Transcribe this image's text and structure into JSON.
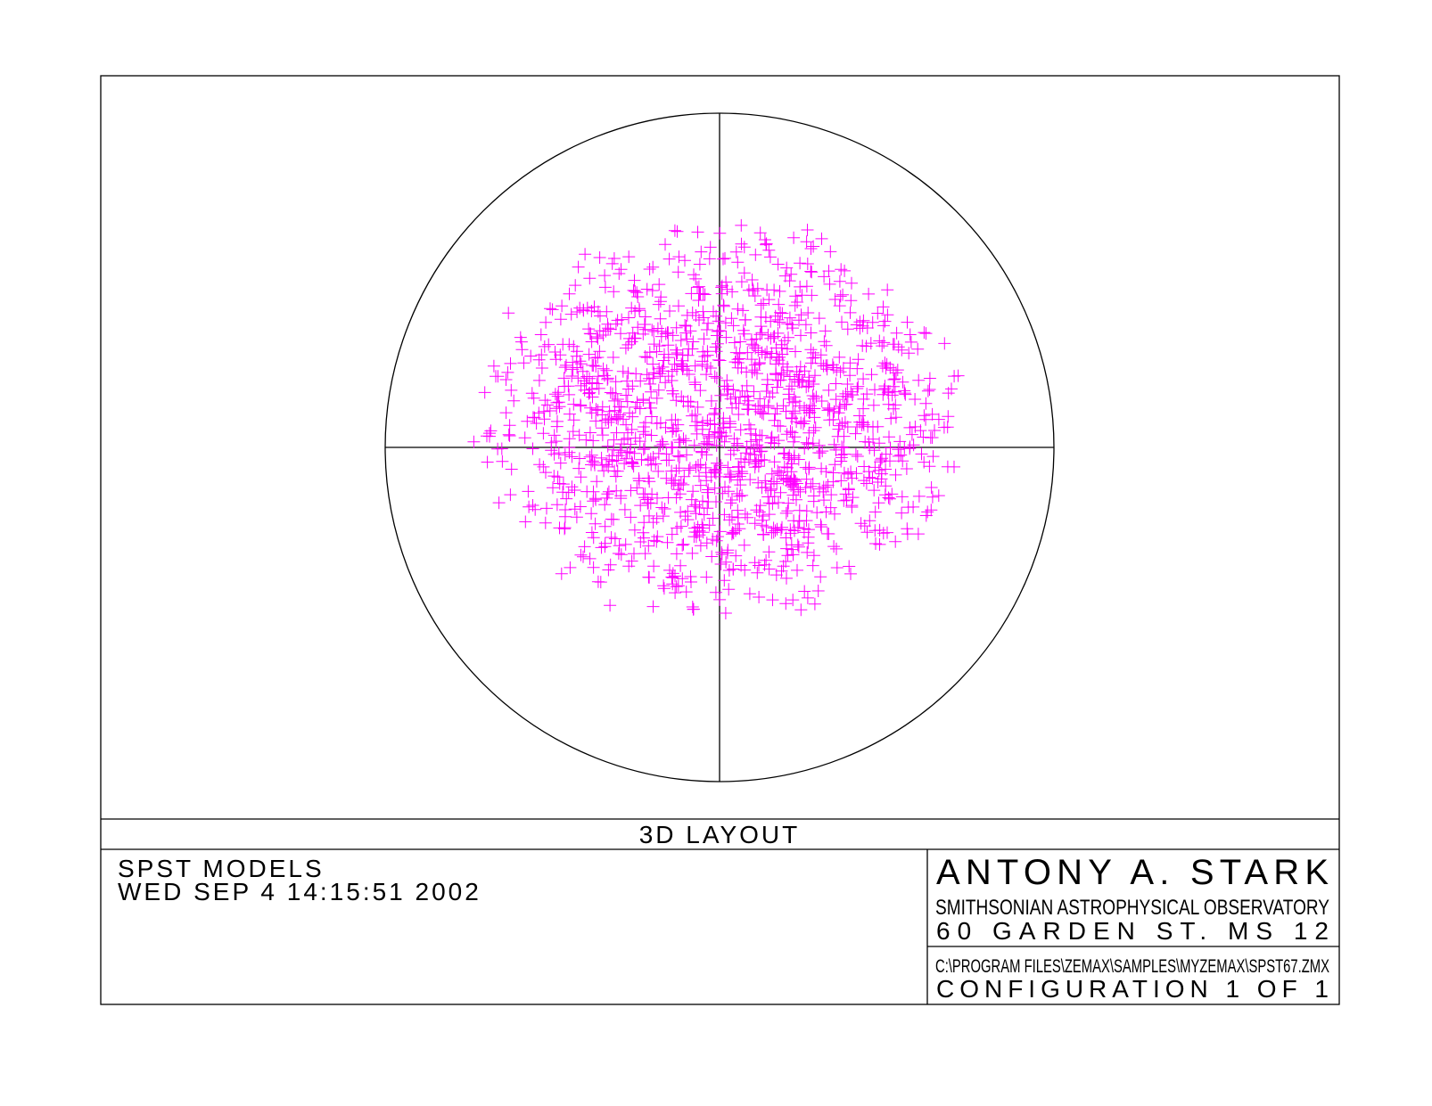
{
  "plot": {
    "title": "3D LAYOUT"
  },
  "info": {
    "lens": "SPST MODELS",
    "date": "WED SEP 4 14:15:51 2002"
  },
  "author": {
    "name": "ANTONY A. STARK",
    "institution": "SMITHSONIAN ASTROPHYSICAL OBSERVATORY",
    "address": "60 GARDEN ST. MS 12"
  },
  "file": {
    "path": "C:\\PROGRAM FILES\\ZEMAX\\SAMPLES\\MYZEMAX\\SPST67.ZMX",
    "configuration": "CONFIGURATION 1 OF 1"
  }
}
